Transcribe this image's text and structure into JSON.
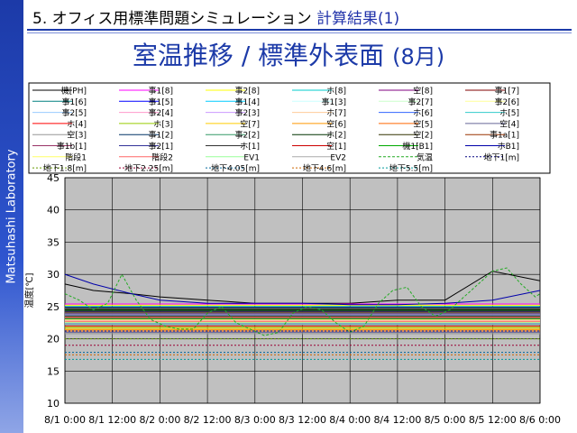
{
  "sidebar_text": "Matsuhashi Laboratory",
  "header": {
    "section": "5. オフィス用標準問題シミュレーション",
    "section_result": "計算結果(1)"
  },
  "title": {
    "main": "室温推移 / 標準外表面",
    "sub": "(8月)"
  },
  "colors": {
    "accent": "#1c3aa8",
    "plot_bg": "#c0c0c0"
  },
  "chart_data": {
    "type": "line",
    "title": "",
    "xlabel": "",
    "ylabel": "温度[℃]",
    "ylim": [
      10,
      45
    ],
    "yticks": [
      10,
      15,
      20,
      25,
      30,
      35,
      40,
      45
    ],
    "xlim": [
      0,
      5
    ],
    "xunit": "days since 8/1 0:00",
    "xticks": [
      {
        "x": 0,
        "label": "8/1 0:00"
      },
      {
        "x": 0.5,
        "label": "8/1 12:00"
      },
      {
        "x": 1,
        "label": "8/2 0:00"
      },
      {
        "x": 1.5,
        "label": "8/2 12:00"
      },
      {
        "x": 2,
        "label": "8/3 0:00"
      },
      {
        "x": 2.5,
        "label": "8/3 12:00"
      },
      {
        "x": 3,
        "label": "8/4 0:00"
      },
      {
        "x": 3.5,
        "label": "8/4 12:00"
      },
      {
        "x": 4,
        "label": "8/5 0:00"
      },
      {
        "x": 4.5,
        "label": "8/5 12:00"
      },
      {
        "x": 5,
        "label": "8/6 0:00"
      }
    ],
    "grid": true,
    "legend_position": "top",
    "series": [
      {
        "name": "機[PH]",
        "color": "#000000",
        "dash": "",
        "x": [
          0,
          0.3,
          0.7,
          1.0,
          1.5,
          2.0,
          2.5,
          3.0,
          3.5,
          4.0,
          4.5,
          5.0
        ],
        "values": [
          28.5,
          27.5,
          27.0,
          26.5,
          26.0,
          25.5,
          25.5,
          25.5,
          26.0,
          26.0,
          30.5,
          29.0
        ]
      },
      {
        "name": "事1[8]",
        "color": "#ff00ff",
        "dash": "",
        "x": [
          0,
          5
        ],
        "values": [
          25.4,
          25.4
        ]
      },
      {
        "name": "事2[8]",
        "color": "#ffff00",
        "dash": "",
        "x": [
          0,
          5
        ],
        "values": [
          25.2,
          25.2
        ]
      },
      {
        "name": "ホ[8]",
        "color": "#00cccc",
        "dash": "",
        "x": [
          0,
          5
        ],
        "values": [
          25.0,
          25.0
        ]
      },
      {
        "name": "空[8]",
        "color": "#800080",
        "dash": "",
        "x": [
          0,
          5
        ],
        "values": [
          24.8,
          24.8
        ]
      },
      {
        "name": "事1[7]",
        "color": "#800000",
        "dash": "",
        "x": [
          0,
          5
        ],
        "values": [
          24.6,
          24.6
        ]
      },
      {
        "name": "事1[6]",
        "color": "#008080",
        "dash": "",
        "x": [
          0,
          5
        ],
        "values": [
          24.4,
          24.4
        ]
      },
      {
        "name": "事1[5]",
        "color": "#0000ff",
        "dash": "",
        "x": [
          0,
          5
        ],
        "values": [
          24.2,
          24.2
        ]
      },
      {
        "name": "事1[4]",
        "color": "#00ccff",
        "dash": "",
        "x": [
          0,
          5
        ],
        "values": [
          24.0,
          24.0
        ]
      },
      {
        "name": "事1[3]",
        "color": "#ccffff",
        "dash": "",
        "x": [
          0,
          5
        ],
        "values": [
          23.8,
          23.8
        ]
      },
      {
        "name": "事2[7]",
        "color": "#ccffcc",
        "dash": "",
        "x": [
          0,
          5
        ],
        "values": [
          23.6,
          23.6
        ]
      },
      {
        "name": "事2[6]",
        "color": "#ffff99",
        "dash": "",
        "x": [
          0,
          5
        ],
        "values": [
          23.4,
          23.4
        ]
      },
      {
        "name": "事2[5]",
        "color": "#99ccff",
        "dash": "",
        "x": [
          0,
          5
        ],
        "values": [
          23.2,
          23.2
        ]
      },
      {
        "name": "事2[4]",
        "color": "#ff99cc",
        "dash": "",
        "x": [
          0,
          5
        ],
        "values": [
          23.0,
          23.0
        ]
      },
      {
        "name": "事2[3]",
        "color": "#cc99ff",
        "dash": "",
        "x": [
          0,
          5
        ],
        "values": [
          22.8,
          22.8
        ]
      },
      {
        "name": "ホ[7]",
        "color": "#ffcc99",
        "dash": "",
        "x": [
          0,
          5
        ],
        "values": [
          22.6,
          22.6
        ]
      },
      {
        "name": "ホ[6]",
        "color": "#3366ff",
        "dash": "",
        "x": [
          0,
          5
        ],
        "values": [
          22.4,
          22.4
        ]
      },
      {
        "name": "ホ[5]",
        "color": "#33cccc",
        "dash": "",
        "x": [
          0,
          5
        ],
        "values": [
          22.2,
          22.2
        ]
      },
      {
        "name": "ホ[4]",
        "color": "#ff0000",
        "dash": "",
        "x": [
          0,
          5
        ],
        "values": [
          22.0,
          22.0
        ]
      },
      {
        "name": "ホ[3]",
        "color": "#99cc00",
        "dash": "",
        "x": [
          0,
          5
        ],
        "values": [
          21.8,
          21.8
        ]
      },
      {
        "name": "空[7]",
        "color": "#ffcc00",
        "dash": "",
        "x": [
          0,
          5
        ],
        "values": [
          21.6,
          21.6
        ]
      },
      {
        "name": "空[6]",
        "color": "#ff9900",
        "dash": "",
        "x": [
          0,
          5
        ],
        "values": [
          21.4,
          21.4
        ]
      },
      {
        "name": "空[5]",
        "color": "#ff6600",
        "dash": "",
        "x": [
          0,
          5
        ],
        "values": [
          21.2,
          21.2
        ]
      },
      {
        "name": "空[4]",
        "color": "#666699",
        "dash": "",
        "x": [
          0,
          5
        ],
        "values": [
          21.0,
          21.0
        ]
      },
      {
        "name": "空[3]",
        "color": "#969696",
        "dash": "",
        "x": [
          0,
          5
        ],
        "values": [
          20.8,
          20.8
        ]
      },
      {
        "name": "事1[2]",
        "color": "#003366",
        "dash": "",
        "x": [
          0,
          5
        ],
        "values": [
          24.9,
          24.9
        ]
      },
      {
        "name": "事2[2]",
        "color": "#339966",
        "dash": "",
        "x": [
          0,
          5
        ],
        "values": [
          24.7,
          24.7
        ]
      },
      {
        "name": "ホ[2]",
        "color": "#003300",
        "dash": "",
        "x": [
          0,
          5
        ],
        "values": [
          24.5,
          24.5
        ]
      },
      {
        "name": "空[2]",
        "color": "#333300",
        "dash": "",
        "x": [
          0,
          5
        ],
        "values": [
          24.3,
          24.3
        ]
      },
      {
        "name": "事1a[1]",
        "color": "#993300",
        "dash": "",
        "x": [
          0,
          5
        ],
        "values": [
          24.1,
          24.1
        ]
      },
      {
        "name": "事1b[1]",
        "color": "#993366",
        "dash": "",
        "x": [
          0,
          5
        ],
        "values": [
          23.9,
          23.9
        ]
      },
      {
        "name": "事2[1]",
        "color": "#333399",
        "dash": "",
        "x": [
          0,
          5
        ],
        "values": [
          23.7,
          23.7
        ]
      },
      {
        "name": "ホ[1]",
        "color": "#333333",
        "dash": "",
        "x": [
          0,
          5
        ],
        "values": [
          23.5,
          23.5
        ]
      },
      {
        "name": "空[1]",
        "color": "#cc0000",
        "dash": "",
        "x": [
          0,
          5
        ],
        "values": [
          23.3,
          23.3
        ]
      },
      {
        "name": "機1[B1]",
        "color": "#00aa00",
        "dash": "",
        "x": [
          0,
          5
        ],
        "values": [
          23.1,
          23.1
        ]
      },
      {
        "name": "ホB1]",
        "color": "#0000aa",
        "dash": "",
        "x": [
          0,
          0.3,
          0.7,
          1.0,
          1.5,
          2.0,
          2.5,
          3.0,
          3.5,
          4.0,
          4.5,
          5.0
        ],
        "values": [
          30.0,
          28.5,
          27.0,
          26.0,
          25.5,
          25.5,
          25.5,
          25.3,
          25.3,
          25.5,
          26.0,
          27.5
        ]
      },
      {
        "name": "階段1",
        "color": "#ffff66",
        "dash": "",
        "x": [
          0,
          5
        ],
        "values": [
          22.9,
          22.9
        ]
      },
      {
        "name": "階段2",
        "color": "#ff6666",
        "dash": "",
        "x": [
          0,
          5
        ],
        "values": [
          22.7,
          22.7
        ]
      },
      {
        "name": "EV1",
        "color": "#99ff99",
        "dash": "",
        "x": [
          0,
          5
        ],
        "values": [
          22.5,
          22.5
        ]
      },
      {
        "name": "EV2",
        "color": "#aaaaaa",
        "dash": "",
        "x": [
          0,
          5
        ],
        "values": [
          22.3,
          22.3
        ]
      },
      {
        "name": "気温",
        "color": "#22aa22",
        "dash": "3,2",
        "x": [
          0,
          0.15,
          0.3,
          0.45,
          0.6,
          0.75,
          0.9,
          1.05,
          1.2,
          1.35,
          1.5,
          1.65,
          1.8,
          1.95,
          2.1,
          2.25,
          2.4,
          2.55,
          2.7,
          2.85,
          3.0,
          3.15,
          3.3,
          3.45,
          3.6,
          3.75,
          3.9,
          4.05,
          4.2,
          4.35,
          4.5,
          4.65,
          4.8,
          4.95,
          5.0
        ],
        "values": [
          27.0,
          26.0,
          24.5,
          25.5,
          30.0,
          26.0,
          23.0,
          22.0,
          21.5,
          21.5,
          24.0,
          25.0,
          22.5,
          21.5,
          20.5,
          21.0,
          24.0,
          25.0,
          24.5,
          22.5,
          21.0,
          22.0,
          25.5,
          27.5,
          28.0,
          25.0,
          23.5,
          24.5,
          26.5,
          28.5,
          30.5,
          31.0,
          28.5,
          26.5,
          27.0
        ]
      },
      {
        "name": "地下1[m]",
        "color": "#000080",
        "dash": "2,2",
        "x": [
          0,
          5
        ],
        "values": [
          21.2,
          21.2
        ]
      },
      {
        "name": "地下1.8[m]",
        "color": "#669900",
        "dash": "2,2",
        "x": [
          0,
          5
        ],
        "values": [
          20.0,
          20.0
        ]
      },
      {
        "name": "地下2.25[m]",
        "color": "#990033",
        "dash": "2,2",
        "x": [
          0,
          5
        ],
        "values": [
          19.0,
          19.0
        ]
      },
      {
        "name": "地下4.05[m]",
        "color": "#006699",
        "dash": "2,2",
        "x": [
          0,
          5
        ],
        "values": [
          17.9,
          17.9
        ]
      },
      {
        "name": "地下4.6[m]",
        "color": "#cc6600",
        "dash": "2,2",
        "x": [
          0,
          5
        ],
        "values": [
          17.5,
          17.5
        ]
      },
      {
        "name": "地下5.5[m]",
        "color": "#009999",
        "dash": "2,2",
        "x": [
          0,
          5
        ],
        "values": [
          16.8,
          16.8
        ]
      }
    ]
  }
}
